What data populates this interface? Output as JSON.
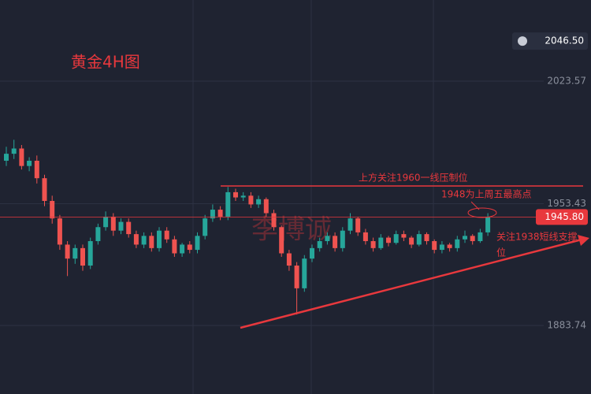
{
  "chart_data": {
    "type": "candlestick",
    "title": "黄金4H图",
    "watermark": "李博诚",
    "annotations": [
      "上方关注1960一线压制位",
      "1948为上周五最高点",
      "关注1938短线支撑",
      "位"
    ],
    "open": [
      1978,
      1982,
      1985,
      1975,
      1978,
      1968,
      1955,
      1945,
      1930,
      1922,
      1928,
      1918,
      1932,
      1940,
      1946,
      1938,
      1943,
      1936,
      1930,
      1935,
      1928,
      1938,
      1933,
      1925,
      1930,
      1927,
      1935,
      1945,
      1950,
      1946,
      1960,
      1957,
      1958,
      1953,
      1956,
      1948,
      1940,
      1925,
      1918,
      1905,
      1922,
      1928,
      1932,
      1935,
      1928,
      1938,
      1945,
      1937,
      1932,
      1928,
      1934,
      1931,
      1936,
      1934,
      1930,
      1936,
      1932,
      1927,
      1930,
      1928,
      1933,
      1935,
      1932,
      1937
    ],
    "high": [
      1986,
      1990,
      1987,
      1980,
      1981,
      1970,
      1958,
      1947,
      1932,
      1930,
      1930,
      1934,
      1942,
      1949,
      1948,
      1945,
      1945,
      1938,
      1937,
      1937,
      1940,
      1940,
      1935,
      1931,
      1932,
      1937,
      1947,
      1953,
      1952,
      1963,
      1962,
      1960,
      1960,
      1958,
      1957,
      1950,
      1941,
      1927,
      1920,
      1924,
      1930,
      1934,
      1937,
      1937,
      1940,
      1948,
      1946,
      1939,
      1934,
      1936,
      1935,
      1938,
      1938,
      1935,
      1938,
      1937,
      1933,
      1932,
      1931,
      1935,
      1938,
      1936,
      1939,
      1948
    ],
    "low": [
      1975,
      1979,
      1973,
      1972,
      1965,
      1952,
      1942,
      1927,
      1912,
      1919,
      1915,
      1916,
      1930,
      1938,
      1935,
      1936,
      1934,
      1928,
      1928,
      1926,
      1926,
      1931,
      1923,
      1923,
      1925,
      1925,
      1933,
      1943,
      1944,
      1944,
      1955,
      1955,
      1951,
      1951,
      1946,
      1938,
      1923,
      1915,
      1890,
      1903,
      1920,
      1926,
      1930,
      1926,
      1926,
      1936,
      1935,
      1930,
      1926,
      1927,
      1929,
      1930,
      1932,
      1928,
      1929,
      1930,
      1925,
      1925,
      1926,
      1926,
      1931,
      1930,
      1931,
      1935
    ],
    "close": [
      1982,
      1985,
      1975,
      1978,
      1968,
      1955,
      1945,
      1930,
      1922,
      1928,
      1918,
      1932,
      1940,
      1946,
      1938,
      1943,
      1936,
      1930,
      1935,
      1928,
      1938,
      1933,
      1925,
      1930,
      1927,
      1935,
      1945,
      1950,
      1946,
      1960,
      1957,
      1958,
      1953,
      1956,
      1948,
      1940,
      1925,
      1918,
      1905,
      1922,
      1928,
      1932,
      1935,
      1928,
      1938,
      1945,
      1937,
      1932,
      1928,
      1934,
      1931,
      1936,
      1934,
      1930,
      1936,
      1932,
      1927,
      1930,
      1928,
      1933,
      1935,
      1932,
      1937,
      1946
    ],
    "up_color": "#26a69a",
    "down_color": "#ef5350",
    "ylim": [
      1844.5,
      2070
    ],
    "yticks": [
      2023.57,
      1953.43,
      1883.74
    ],
    "grid": true,
    "last_price": {
      "value": 1945.8,
      "label": "1945.80"
    },
    "alert_price": {
      "value": 2046.5,
      "label": "2046.50"
    }
  }
}
